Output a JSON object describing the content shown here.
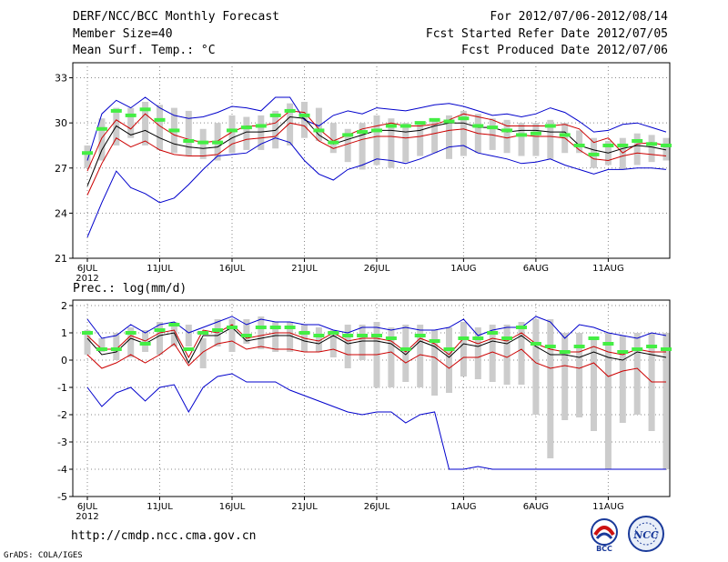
{
  "header": {
    "title": "DERF/NCC/BCC Monthly Forecast",
    "member_size": "Member Size=40",
    "variable1": "Mean Surf. Temp.: °C",
    "period": "For 2012/07/06-2012/08/14",
    "refer_date": "Fcst Started Refer Date 2012/07/05",
    "produced_date": "Fcst Produced Date 2012/07/06"
  },
  "footer": {
    "url": "http://cmdp.ncc.cma.gov.cn",
    "credit": "GrADS: COLA/IGES",
    "logo1": "BCC",
    "logo2": "NCC"
  },
  "colors": {
    "ensemble_max_min": "#0000cc",
    "spread": "#cc0000",
    "mean": "#000000",
    "observed": "#44ee44",
    "box": "#cccccc"
  },
  "chart_data": [
    {
      "type": "line",
      "title": "Mean Surf. Temp.: °C",
      "x_tick_labels": [
        "6JUL",
        "11JUL",
        "16JUL",
        "21JUL",
        "26JUL",
        "1AUG",
        "6AUG",
        "11AUG"
      ],
      "x_tick_days": [
        0,
        5,
        10,
        15,
        20,
        26,
        31,
        36
      ],
      "x_year_label": "2012",
      "ylim": [
        21,
        34
      ],
      "y_ticks": [
        21,
        24,
        27,
        30,
        33
      ],
      "box_low": [
        27.0,
        27.5,
        28.5,
        29.0,
        28.5,
        28.2,
        28.0,
        27.8,
        27.6,
        27.5,
        28.0,
        28.2,
        28.2,
        28.3,
        28.5,
        29.0,
        28.8,
        28.0,
        27.4,
        26.9,
        27.2,
        27.0,
        27.4,
        27.8,
        28.0,
        27.6,
        27.8,
        28.0,
        28.2,
        28.0,
        27.8,
        27.8,
        27.6,
        28.0,
        28.0,
        27.0,
        27.2,
        26.9,
        27.2,
        27.4,
        27.5
      ],
      "box_high": [
        28.5,
        30.3,
        31.0,
        31.0,
        31.4,
        31.2,
        31.0,
        30.8,
        29.6,
        30.0,
        30.5,
        30.4,
        30.5,
        30.8,
        31.3,
        31.4,
        31.0,
        30.0,
        29.6,
        30.0,
        30.5,
        30.3,
        30.0,
        30.0,
        30.2,
        30.5,
        30.8,
        30.6,
        30.3,
        30.2,
        30.0,
        30.0,
        30.2,
        30.0,
        29.5,
        29.0,
        28.8,
        29.0,
        29.3,
        29.2,
        29.0
      ],
      "observed": [
        28.0,
        29.6,
        30.8,
        30.5,
        30.9,
        30.2,
        29.5,
        28.8,
        28.7,
        28.7,
        29.5,
        29.7,
        29.8,
        30.5,
        30.8,
        30.5,
        29.5,
        28.7,
        29.2,
        29.4,
        29.5,
        29.8,
        29.8,
        30.0,
        30.2,
        30.1,
        30.3,
        29.8,
        29.7,
        29.5,
        29.2,
        29.3,
        29.8,
        29.2,
        28.5,
        27.9,
        28.5,
        28.5,
        28.8,
        28.6,
        28.5
      ],
      "series": [
        {
          "name": "ensemble max",
          "color": "#0000cc",
          "values": [
            27.5,
            30.6,
            31.5,
            31.0,
            31.7,
            31.0,
            30.5,
            30.3,
            30.4,
            30.7,
            31.1,
            31.0,
            30.8,
            31.7,
            31.7,
            30.2,
            29.8,
            30.5,
            30.8,
            30.6,
            31.0,
            30.9,
            30.8,
            31.0,
            31.2,
            31.3,
            31.1,
            30.8,
            30.5,
            30.6,
            30.4,
            30.6,
            31.0,
            30.7,
            30.1,
            29.4,
            29.5,
            29.9,
            30.0,
            29.7,
            29.4
          ]
        },
        {
          "name": "ensemble upper",
          "color": "#cc0000",
          "values": [
            26.8,
            29.0,
            30.2,
            29.6,
            30.6,
            29.8,
            29.2,
            28.9,
            28.7,
            28.8,
            29.4,
            29.8,
            29.8,
            30.0,
            30.8,
            30.7,
            29.6,
            28.8,
            29.2,
            29.6,
            29.8,
            30.0,
            29.8,
            29.8,
            29.9,
            30.2,
            30.6,
            30.4,
            30.2,
            29.8,
            29.8,
            29.8,
            29.8,
            29.9,
            29.6,
            28.7,
            29.0,
            28.0,
            28.6,
            28.7,
            28.5
          ]
        },
        {
          "name": "ensemble mean",
          "color": "#000000",
          "values": [
            25.8,
            28.2,
            29.8,
            29.2,
            29.5,
            29.0,
            28.6,
            28.4,
            28.3,
            28.4,
            29.0,
            29.4,
            29.4,
            29.5,
            30.4,
            30.3,
            29.2,
            28.6,
            28.9,
            29.2,
            29.5,
            29.5,
            29.4,
            29.5,
            29.8,
            30.0,
            30.0,
            29.7,
            29.7,
            29.4,
            29.5,
            29.5,
            29.4,
            29.4,
            28.5,
            28.2,
            28.0,
            28.3,
            28.5,
            28.4,
            28.2
          ]
        },
        {
          "name": "ensemble lower",
          "color": "#cc0000",
          "values": [
            25.2,
            27.3,
            29.0,
            28.4,
            28.8,
            28.2,
            27.9,
            27.8,
            27.8,
            27.9,
            28.6,
            28.9,
            29.0,
            29.1,
            30.0,
            29.8,
            28.8,
            28.3,
            28.6,
            28.9,
            29.1,
            29.1,
            29.0,
            29.1,
            29.3,
            29.5,
            29.6,
            29.3,
            29.2,
            29.0,
            29.2,
            29.1,
            29.1,
            29.0,
            28.2,
            27.6,
            27.5,
            27.8,
            28.0,
            27.9,
            27.8
          ]
        },
        {
          "name": "ensemble min",
          "color": "#0000cc",
          "values": [
            22.4,
            24.7,
            26.8,
            25.7,
            25.3,
            24.7,
            25.0,
            25.9,
            26.9,
            27.8,
            27.9,
            28.0,
            28.6,
            29.0,
            28.7,
            27.5,
            26.6,
            26.2,
            26.9,
            27.2,
            27.6,
            27.5,
            27.3,
            27.6,
            28.0,
            28.4,
            28.5,
            28.0,
            27.8,
            27.6,
            27.3,
            27.4,
            27.6,
            27.2,
            26.9,
            26.6,
            26.9,
            26.9,
            27.0,
            27.0,
            26.9
          ]
        }
      ]
    },
    {
      "type": "line",
      "title": "Prec.: log(mm/d)",
      "x_tick_labels": [
        "6JUL",
        "11JUL",
        "16JUL",
        "21JUL",
        "26JUL",
        "1AUG",
        "6AUG",
        "11AUG"
      ],
      "x_tick_days": [
        0,
        5,
        10,
        15,
        20,
        26,
        31,
        36
      ],
      "x_year_label": "2012",
      "ylim": [
        -5,
        2.2
      ],
      "y_ticks": [
        -5,
        -4,
        -3,
        -2,
        -1,
        0,
        1,
        2
      ],
      "box_low": [
        0.2,
        0.3,
        0.0,
        0.1,
        0.3,
        0.2,
        0.5,
        0.5,
        -0.3,
        0.5,
        0.3,
        0.6,
        0.4,
        0.3,
        0.3,
        0.3,
        0.3,
        0.1,
        -0.3,
        0.0,
        -1.0,
        -1.0,
        -0.8,
        -1.0,
        -1.3,
        -1.2,
        -0.6,
        -0.7,
        -0.8,
        -0.9,
        -0.9,
        -2.0,
        -3.6,
        -2.2,
        -2.1,
        -2.6,
        -4.0,
        -2.3,
        -2.0,
        -2.6,
        -4.0
      ],
      "box_high": [
        1.1,
        0.8,
        1.0,
        1.2,
        1.1,
        1.4,
        1.4,
        1.3,
        0.8,
        1.5,
        1.5,
        1.5,
        1.6,
        1.4,
        1.4,
        1.3,
        1.2,
        1.1,
        1.3,
        1.3,
        1.4,
        1.2,
        1.3,
        1.3,
        1.1,
        1.2,
        1.4,
        1.2,
        1.3,
        1.3,
        1.4,
        1.5,
        1.5,
        1.0,
        1.0,
        0.8,
        1.0,
        0.9,
        1.0,
        1.0,
        1.0
      ],
      "observed": [
        1.0,
        0.4,
        0.4,
        1.0,
        0.6,
        1.1,
        1.3,
        0.4,
        1.0,
        1.1,
        1.2,
        0.9,
        1.2,
        1.2,
        1.2,
        1.0,
        0.9,
        1.0,
        0.9,
        0.9,
        0.9,
        0.8,
        0.4,
        0.9,
        0.7,
        0.4,
        0.8,
        0.8,
        1.0,
        0.8,
        1.2,
        0.6,
        0.5,
        0.3,
        0.5,
        0.8,
        0.6,
        0.3,
        0.4,
        0.5,
        0.4
      ],
      "series": [
        {
          "name": "ensemble max",
          "color": "#0000cc",
          "values": [
            1.5,
            0.8,
            0.9,
            1.3,
            1.0,
            1.3,
            1.4,
            1.0,
            1.2,
            1.4,
            1.6,
            1.3,
            1.5,
            1.4,
            1.4,
            1.3,
            1.3,
            1.1,
            1.0,
            1.2,
            1.2,
            1.1,
            1.2,
            1.1,
            1.1,
            1.2,
            1.5,
            0.9,
            1.1,
            1.2,
            1.2,
            1.6,
            1.4,
            0.8,
            1.3,
            1.2,
            1.0,
            0.9,
            0.8,
            1.0,
            0.9
          ]
        },
        {
          "name": "ensemble upper",
          "color": "#cc0000",
          "values": [
            0.9,
            0.4,
            0.4,
            0.9,
            0.7,
            1.0,
            1.1,
            0.1,
            1.1,
            1.0,
            1.3,
            0.8,
            0.9,
            1.0,
            1.0,
            0.8,
            0.7,
            1.0,
            0.7,
            0.8,
            0.8,
            0.7,
            0.3,
            0.8,
            0.6,
            0.2,
            0.8,
            0.6,
            0.8,
            0.7,
            1.0,
            0.6,
            0.4,
            0.3,
            0.3,
            0.5,
            0.3,
            0.2,
            0.4,
            0.3,
            0.3
          ]
        },
        {
          "name": "ensemble mean",
          "color": "#000000",
          "values": [
            0.8,
            0.2,
            0.3,
            0.8,
            0.6,
            0.9,
            1.0,
            -0.1,
            0.9,
            0.9,
            1.2,
            0.7,
            0.8,
            0.9,
            0.9,
            0.7,
            0.6,
            0.9,
            0.6,
            0.7,
            0.7,
            0.6,
            0.2,
            0.7,
            0.5,
            0.1,
            0.6,
            0.5,
            0.7,
            0.6,
            0.9,
            0.5,
            0.2,
            0.2,
            0.1,
            0.3,
            0.1,
            0.0,
            0.3,
            0.2,
            0.1
          ]
        },
        {
          "name": "ensemble lower",
          "color": "#cc0000",
          "values": [
            0.2,
            -0.3,
            -0.1,
            0.2,
            -0.1,
            0.2,
            0.6,
            -0.2,
            0.3,
            0.6,
            0.7,
            0.4,
            0.5,
            0.4,
            0.4,
            0.3,
            0.3,
            0.4,
            0.2,
            0.2,
            0.2,
            0.3,
            -0.1,
            0.2,
            0.1,
            -0.3,
            0.1,
            0.1,
            0.3,
            0.1,
            0.4,
            -0.1,
            -0.3,
            -0.2,
            -0.3,
            -0.1,
            -0.6,
            -0.4,
            -0.3,
            -0.8,
            -0.8
          ]
        },
        {
          "name": "ensemble min",
          "color": "#0000cc",
          "values": [
            -1.0,
            -1.7,
            -1.2,
            -1.0,
            -1.5,
            -1.0,
            -0.9,
            -1.9,
            -1.0,
            -0.6,
            -0.5,
            -0.8,
            -0.8,
            -0.8,
            -1.1,
            -1.3,
            -1.5,
            -1.7,
            -1.9,
            -2.0,
            -1.9,
            -1.9,
            -2.3,
            -2.0,
            -1.9,
            -4.0,
            -4.0,
            -3.9,
            -4.0,
            -4.0,
            -4.0,
            -4.0,
            -4.0,
            -4.0,
            -4.0,
            -4.0,
            -4.0,
            -4.0,
            -4.0,
            -4.0,
            -4.0
          ]
        }
      ]
    }
  ]
}
